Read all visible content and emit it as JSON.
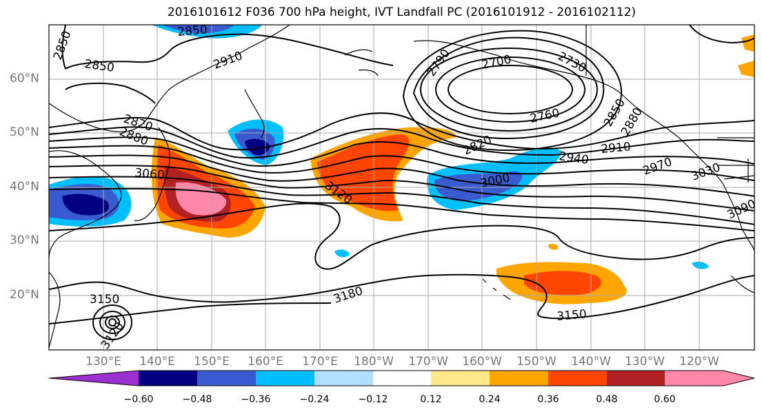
{
  "title": "2016101612 F036 700 hPa height, IVT Landfall PC (2016101912 - 2016102112)",
  "latitude_labels": [
    "60°N",
    "50°N",
    "40°N",
    "30°N",
    "20°N"
  ],
  "longitude_labels": [
    "130°E",
    "140°E",
    "150°E",
    "160°E",
    "170°E",
    "180°W",
    "170°W",
    "160°W",
    "150°W",
    "140°W",
    "130°W",
    "120°W"
  ],
  "contour_labels": [
    "2850",
    "2850",
    "2850",
    "2910",
    "2820",
    "2880",
    "3060",
    "2790",
    "2700",
    "2730",
    "2760",
    "2820",
    "2850",
    "2880",
    "2940",
    "2910",
    "2970",
    "3030",
    "3090",
    "3000",
    "3120",
    "3180",
    "3150",
    "3150",
    "3120"
  ],
  "colorbar": {
    "tick_labels": [
      "−0.60",
      "−0.48",
      "−0.36",
      "−0.24",
      "−0.12",
      "0.12",
      "0.24",
      "0.36",
      "0.48",
      "0.60"
    ],
    "colors": [
      "#9b30d0",
      "#000080",
      "#3a5bd0",
      "#00bfff",
      "#b0e0ff",
      "#ffffff",
      "#ffe88a",
      "#ffa500",
      "#ff4500",
      "#b22222",
      "#ff88aa",
      "#ff88aa"
    ]
  }
}
